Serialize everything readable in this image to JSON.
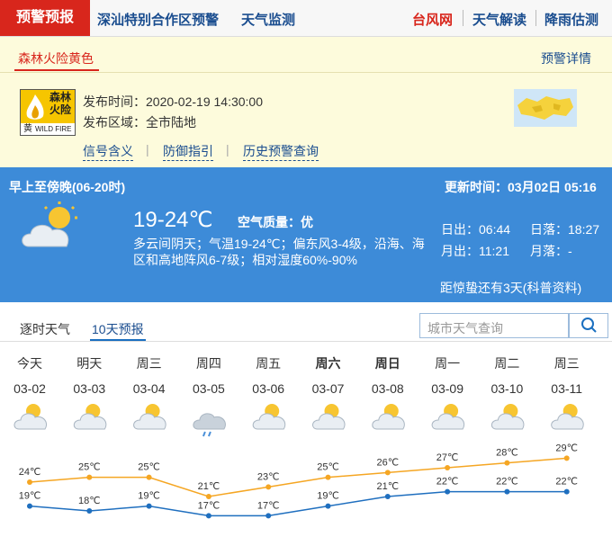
{
  "nav": {
    "active": "预警预报",
    "items": [
      "深汕特别合作区预警",
      "天气监测"
    ],
    "right": [
      "台风网",
      "天气解读",
      "降雨估测"
    ]
  },
  "warning": {
    "tab": "森林火险黄色",
    "detail": "预警详情",
    "icon": {
      "line1": "森林",
      "line2": "火险",
      "level": "黄",
      "en": "WILD FIRE"
    },
    "time": "发布时间：2020-02-19 14:30:00",
    "area": "发布区域：全市陆地",
    "links": [
      "信号含义",
      "防御指引",
      "历史预警查询"
    ]
  },
  "today": {
    "period": "早上至傍晚(06-20时)",
    "updated": "更新时间：03月02日 05:16",
    "temp": "19-24℃",
    "air": "空气质量：优",
    "desc": [
      "多云间阴天；气温19-24℃；偏东风3-4级，沿海、海",
      "区和高地阵风6-7级；相对湿度60%-90%"
    ],
    "sunrise": "日出：06:44",
    "sunset": "日落：18:27",
    "moonrise": "月出：11:21",
    "moonset": "月落：-",
    "solar_term": "距惊蛰还有3天(科普资料)"
  },
  "tabs": [
    "逐时天气",
    "10天预报"
  ],
  "search_placeholder": "城市天气查询",
  "chart_data": {
    "type": "line",
    "days": [
      "今天",
      "明天",
      "周三",
      "周四",
      "周五",
      "周六",
      "周日",
      "周一",
      "周二",
      "周三"
    ],
    "categories": [
      "03-02",
      "03-03",
      "03-04",
      "03-05",
      "03-06",
      "03-07",
      "03-08",
      "03-09",
      "03-10",
      "03-11"
    ],
    "series": [
      {
        "color": "#f5a623",
        "values": [
          24,
          25,
          25,
          21,
          23,
          25,
          26,
          27,
          28,
          29
        ],
        "value_labels": [
          "24℃",
          "25℃",
          "25℃",
          "21℃",
          "23℃",
          "25℃",
          "26℃",
          "27℃",
          "28℃",
          "29℃"
        ]
      },
      {
        "color": "#1f6fbf",
        "values": [
          19,
          18,
          19,
          17,
          17,
          19,
          21,
          22,
          22,
          22
        ],
        "value_labels": [
          "19℃",
          "18℃",
          "19℃",
          "17℃",
          "17℃",
          "19℃",
          "21℃",
          "22℃",
          "22℃",
          "22℃"
        ]
      }
    ],
    "ylim": [
      15,
      30
    ]
  }
}
